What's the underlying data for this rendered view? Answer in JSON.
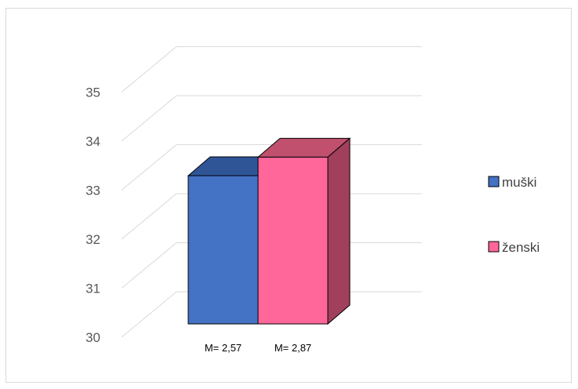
{
  "chart_data": {
    "type": "bar",
    "title": "",
    "xlabel": "",
    "ylabel": "",
    "ylim": [
      30,
      35
    ],
    "yticks": [
      30,
      31,
      32,
      33,
      34,
      35
    ],
    "grid": true,
    "three_d": true,
    "legend_position": "right",
    "series": [
      {
        "name": "muški",
        "value": 33.2,
        "label": "M= 2,57",
        "color": "#4472c4",
        "top_color": "#2f5597",
        "side_color": "#2f5597"
      },
      {
        "name": "ženski",
        "value": 33.6,
        "label": "M= 2,87",
        "color": "#ff6699",
        "top_color": "#c0506e",
        "side_color": "#a0405c"
      }
    ]
  }
}
